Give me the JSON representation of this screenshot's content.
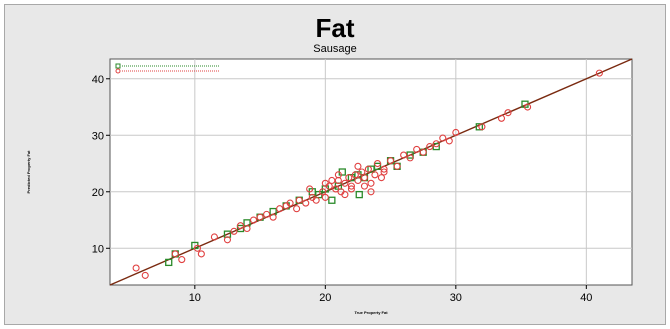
{
  "chart_data": {
    "type": "scatter",
    "title": "Fat",
    "subtitle": "Sausage",
    "xlabel": "True Property Fat",
    "ylabel": "Predicted Property Fat",
    "xlim": [
      3.5,
      43.5
    ],
    "ylim": [
      3.5,
      43.5
    ],
    "x_ticks": [
      10,
      20,
      30,
      40
    ],
    "y_ticks": [
      10,
      20,
      30,
      40
    ],
    "grid": true,
    "legend_position": "top-left",
    "colors": {
      "calibration": "#2a8a2a",
      "validation": "#e04040",
      "fit_line": "#7a2a10",
      "grid": "#c8c8c8",
      "background": "#e8e8e8",
      "plot_area": "#ffffff"
    },
    "fit_line": {
      "x": [
        3.5,
        43.5
      ],
      "y": [
        3.5,
        43.5
      ]
    },
    "series": [
      {
        "marker": "square",
        "x": [
          8.0,
          8.5,
          10.0,
          12.5,
          13.5,
          14.0,
          15.0,
          16.0,
          17.0,
          18.0,
          19.0,
          19.5,
          20.0,
          20.5,
          21.0,
          22.0,
          22.5,
          23.0,
          23.5,
          24.0,
          25.0,
          25.5,
          26.5,
          27.5,
          28.5,
          31.8,
          35.3,
          21.3,
          22.6
        ],
        "y": [
          7.5,
          9.0,
          10.5,
          12.5,
          13.5,
          14.5,
          15.5,
          16.5,
          17.5,
          18.5,
          20.0,
          19.5,
          20.5,
          18.5,
          21.0,
          22.5,
          23.0,
          22.5,
          24.0,
          24.5,
          25.5,
          24.5,
          26.5,
          27.0,
          28.0,
          31.5,
          35.5,
          23.5,
          19.5
        ]
      },
      {
        "marker": "circle",
        "x": [
          5.5,
          6.2,
          8.5,
          9.0,
          10.2,
          10.5,
          11.5,
          12.5,
          13.0,
          13.5,
          14.0,
          14.5,
          15.0,
          15.5,
          16.0,
          16.5,
          17.0,
          17.3,
          17.8,
          18.0,
          18.5,
          19.0,
          19.3,
          19.8,
          20.0,
          20.3,
          20.8,
          21.0,
          21.2,
          21.5,
          21.8,
          22.0,
          22.3,
          22.5,
          22.8,
          23.0,
          23.3,
          23.5,
          23.8,
          24.0,
          24.3,
          24.5,
          25.0,
          25.5,
          26.0,
          26.5,
          27.0,
          27.5,
          28.0,
          28.5,
          29.0,
          29.5,
          30.0,
          32.0,
          33.5,
          34.0,
          35.5,
          41.0,
          20.5,
          21.0,
          22.0,
          23.0,
          24.5,
          21.5,
          22.5,
          23.5,
          20.0,
          18.8
        ],
        "y": [
          6.5,
          5.2,
          9.0,
          8.0,
          10.0,
          9.0,
          12.0,
          11.5,
          13.0,
          14.0,
          13.5,
          15.0,
          15.5,
          16.0,
          15.5,
          17.0,
          17.5,
          18.0,
          17.0,
          18.5,
          18.0,
          19.0,
          18.5,
          20.0,
          19.0,
          21.0,
          20.5,
          22.0,
          20.0,
          21.5,
          22.5,
          21.0,
          23.0,
          22.0,
          23.5,
          22.5,
          24.0,
          21.5,
          23.0,
          25.0,
          22.5,
          24.0,
          25.5,
          24.5,
          26.5,
          26.0,
          27.5,
          27.0,
          28.0,
          28.5,
          29.5,
          29.0,
          30.5,
          31.5,
          33.0,
          34.0,
          35.0,
          41.0,
          22.0,
          23.0,
          20.5,
          21.0,
          23.5,
          19.5,
          24.5,
          20.0,
          21.5,
          20.5
        ]
      }
    ]
  }
}
